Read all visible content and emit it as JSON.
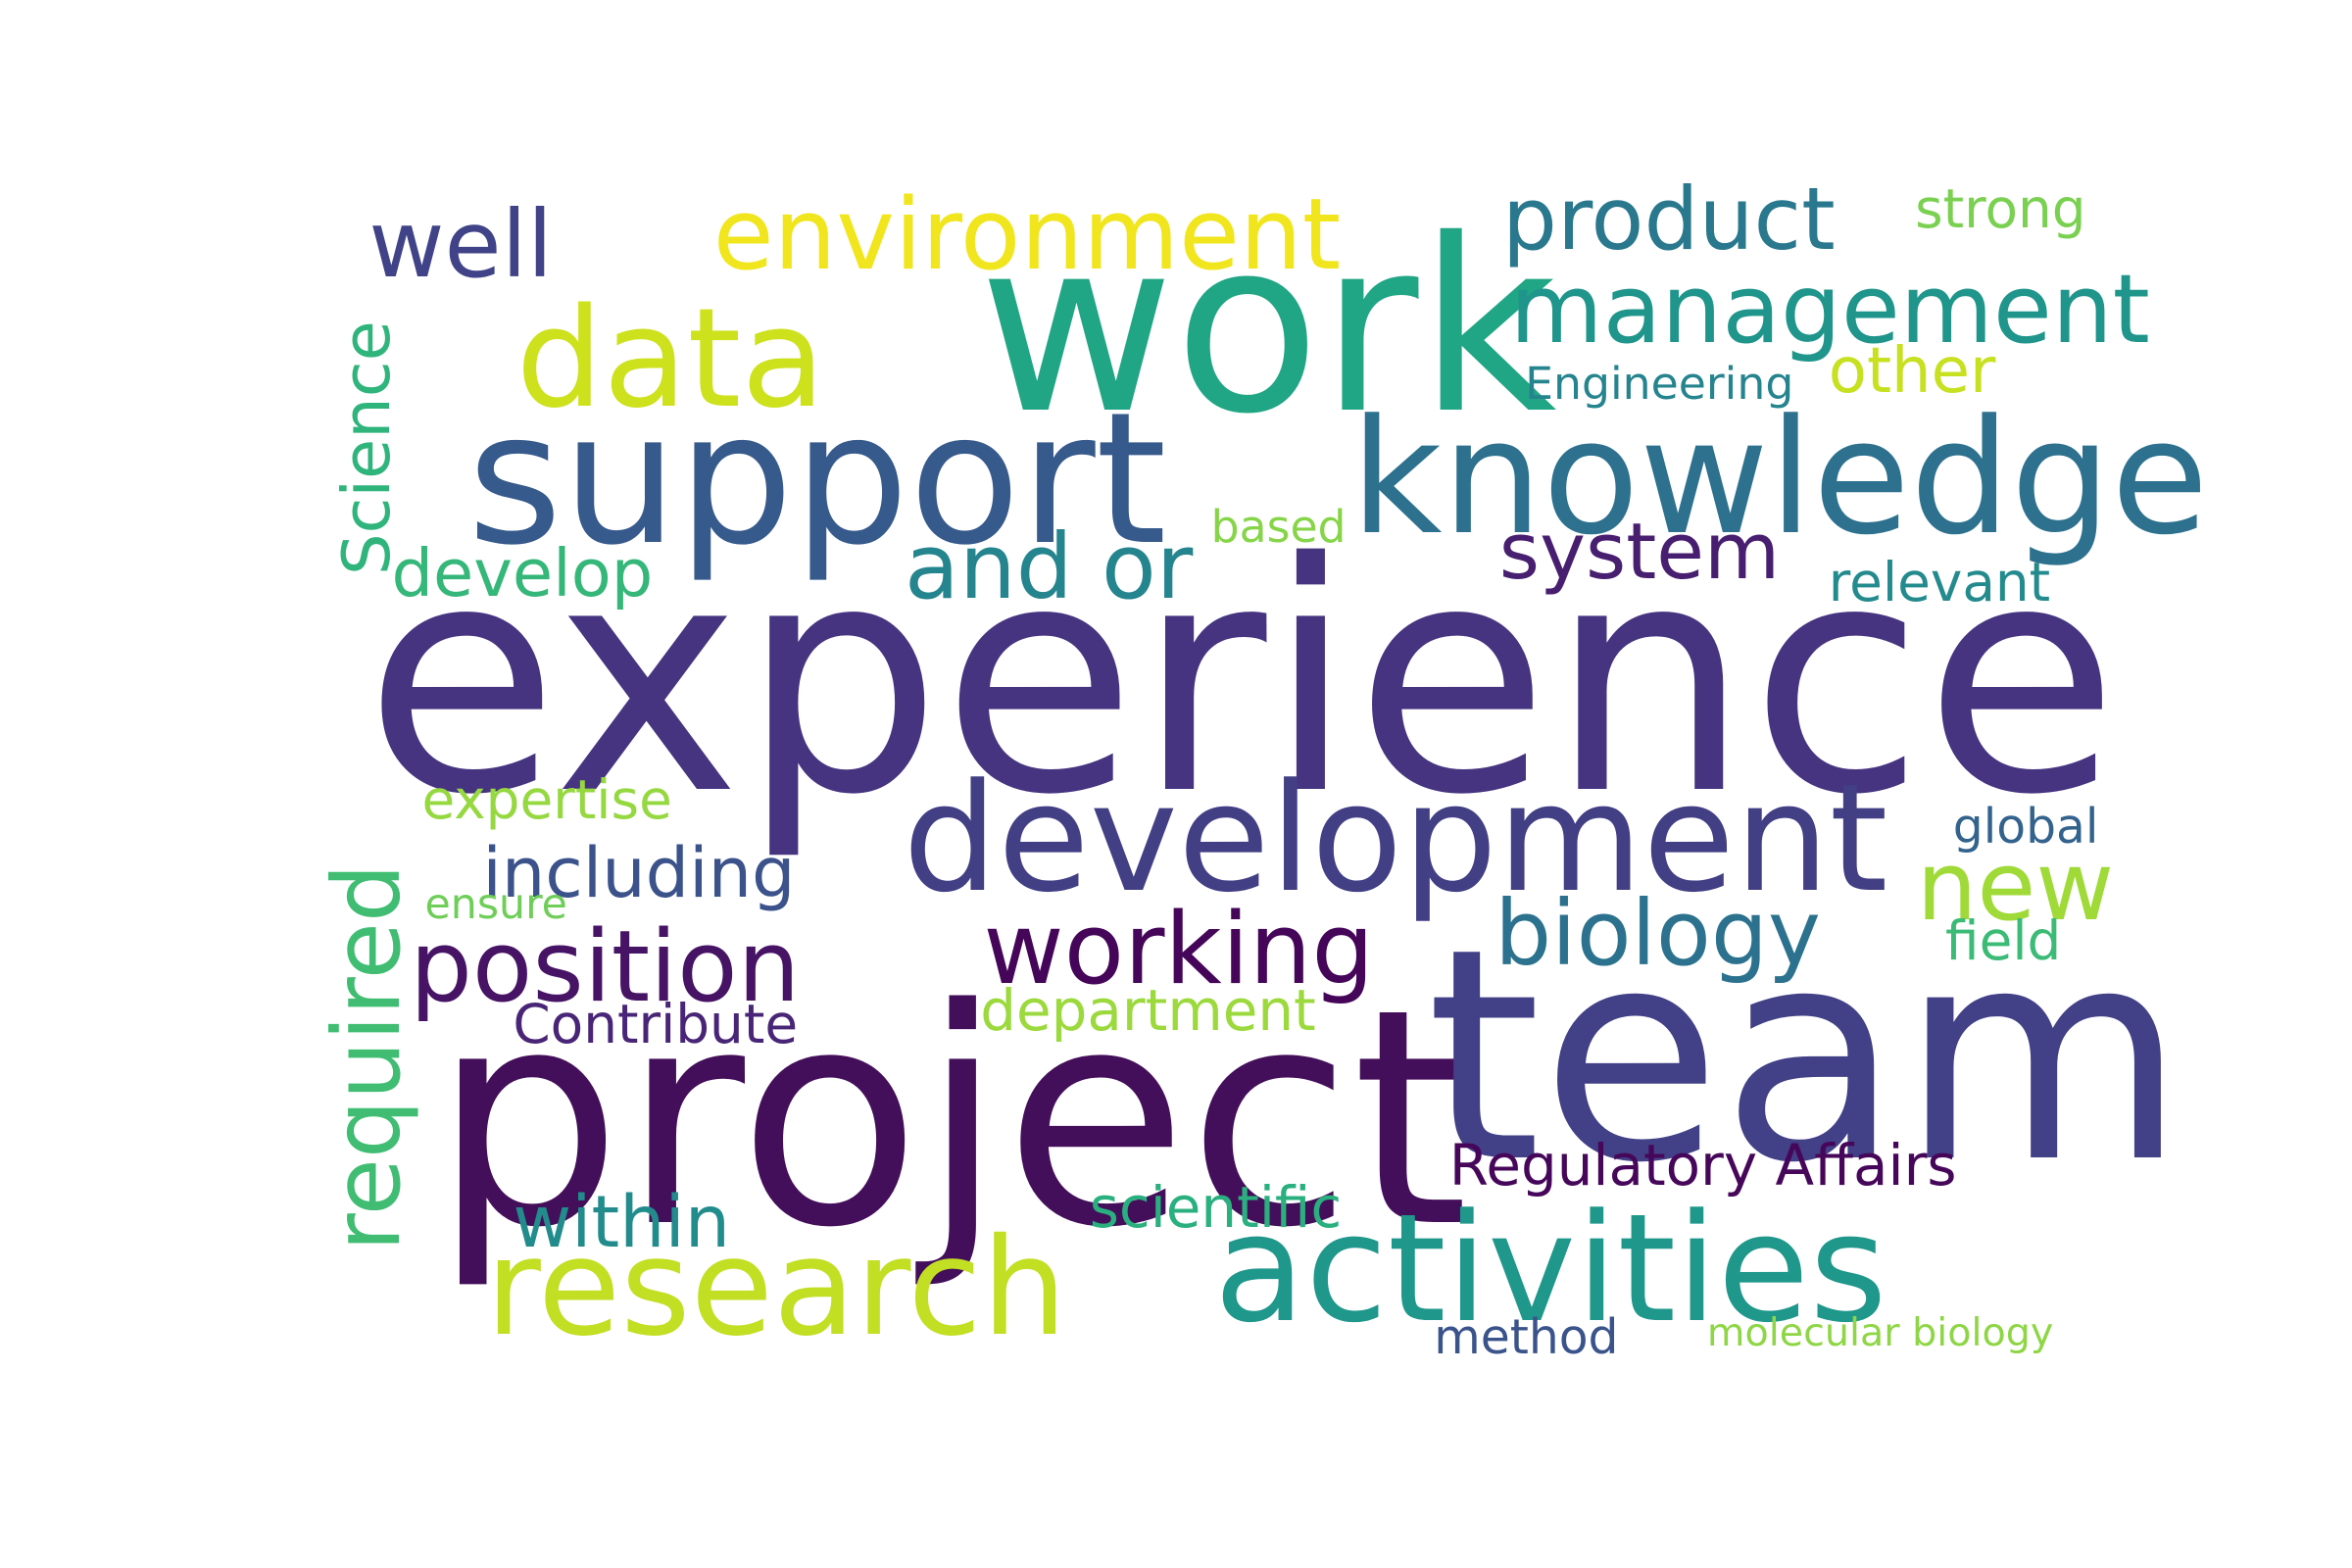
{
  "words": {
    "experience": {
      "text": "experience",
      "color": "#463480"
    },
    "project": {
      "text": "project",
      "color": "#440f5a"
    },
    "team": {
      "text": "team",
      "color": "#424086"
    },
    "work": {
      "text": "work",
      "color": "#21a685"
    },
    "support": {
      "text": "support",
      "color": "#375a8c"
    },
    "knowledge": {
      "text": "knowledge",
      "color": "#2d718e"
    },
    "development": {
      "text": "development",
      "color": "#423f85"
    },
    "activities": {
      "text": "activities",
      "color": "#1f978b"
    },
    "research": {
      "text": "research",
      "color": "#c2df23"
    },
    "data": {
      "text": "data",
      "color": "#cde11d"
    },
    "environment": {
      "text": "environment",
      "color": "#f1e51d"
    },
    "well": {
      "text": "well",
      "color": "#404387"
    },
    "product": {
      "text": "product",
      "color": "#2a788e"
    },
    "management": {
      "text": "management",
      "color": "#1f958b"
    },
    "strong": {
      "text": "strong",
      "color": "#7ad151"
    },
    "engineering": {
      "text": "Engineering",
      "color": "#25848e"
    },
    "other": {
      "text": "other",
      "color": "#c7e020"
    },
    "science": {
      "text": "Science",
      "color": "#2fb47c"
    },
    "based": {
      "text": "based",
      "color": "#86d549"
    },
    "develop": {
      "text": "develop",
      "color": "#35b779"
    },
    "and_or": {
      "text": "and or",
      "color": "#25858e"
    },
    "system": {
      "text": "system",
      "color": "#481f70"
    },
    "relevant": {
      "text": "relevant",
      "color": "#238a8d"
    },
    "expertise": {
      "text": "expertise",
      "color": "#95d840"
    },
    "including": {
      "text": "including",
      "color": "#3b528b"
    },
    "required": {
      "text": "required",
      "color": "#40bd72"
    },
    "ensure": {
      "text": "ensure",
      "color": "#6ece58"
    },
    "position": {
      "text": "position",
      "color": "#471365"
    },
    "working": {
      "text": "working",
      "color": "#450559"
    },
    "new": {
      "text": "new",
      "color": "#a0da39"
    },
    "global": {
      "text": "global",
      "color": "#33638d"
    },
    "biology": {
      "text": "biology",
      "color": "#2c728e"
    },
    "field": {
      "text": "field",
      "color": "#3bbb75"
    },
    "contribute": {
      "text": "Contribute",
      "color": "#482576"
    },
    "department": {
      "text": "department",
      "color": "#9bd93c"
    },
    "regulatory_affairs": {
      "text": "Regulatory Affairs",
      "color": "#46075a"
    },
    "within": {
      "text": "within",
      "color": "#228c8d"
    },
    "scientific": {
      "text": "scientific",
      "color": "#2ab07f"
    },
    "method": {
      "text": "method",
      "color": "#3a538b"
    },
    "molecular_biology": {
      "text": "molecular biology",
      "color": "#8ed645"
    }
  }
}
